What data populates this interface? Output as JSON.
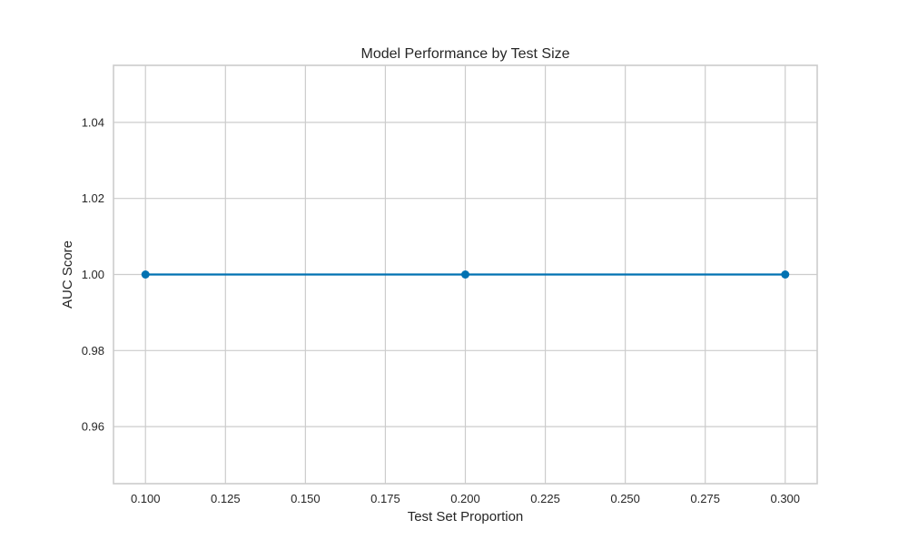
{
  "chart_data": {
    "type": "line",
    "title": "Model Performance by Test Size",
    "xlabel": "Test Set Proportion",
    "ylabel": "AUC Score",
    "xlim": [
      0.09,
      0.31
    ],
    "ylim": [
      0.945,
      1.055
    ],
    "xticks": [
      0.1,
      0.125,
      0.15,
      0.175,
      0.2,
      0.225,
      0.25,
      0.275,
      0.3
    ],
    "xtick_labels": [
      "0.100",
      "0.125",
      "0.150",
      "0.175",
      "0.200",
      "0.225",
      "0.250",
      "0.275",
      "0.300"
    ],
    "yticks": [
      0.96,
      0.98,
      1.0,
      1.02,
      1.04
    ],
    "ytick_labels": [
      "0.96",
      "0.98",
      "1.00",
      "1.02",
      "1.04"
    ],
    "grid": true,
    "legend": "none",
    "series": [
      {
        "x": [
          0.1,
          0.2,
          0.3
        ],
        "values": [
          1.0,
          1.0,
          1.0
        ],
        "color": "#0072b2",
        "marker": "circle"
      }
    ]
  }
}
